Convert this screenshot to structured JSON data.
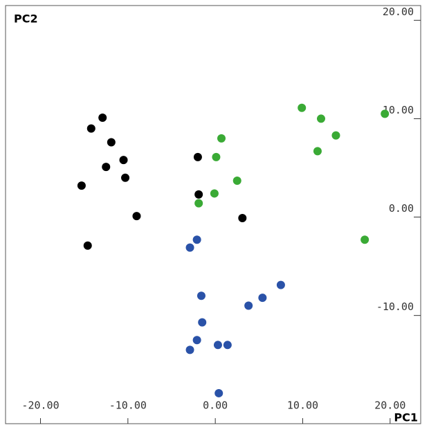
{
  "chart_data": {
    "type": "scatter",
    "x_label": "PC1",
    "y_label": "PC2",
    "xlim": [
      -24,
      23.5
    ],
    "ylim": [
      -21,
      21.5
    ],
    "xticks": [
      {
        "value": -20,
        "label": "-20.00"
      },
      {
        "value": -10,
        "label": "-10.00"
      },
      {
        "value": 0,
        "label": "0.00"
      },
      {
        "value": 10,
        "label": "10.00"
      },
      {
        "value": 20,
        "label": "20.00"
      }
    ],
    "yticks": [
      {
        "value": 20,
        "label": "20.00"
      },
      {
        "value": 10,
        "label": "10.00"
      },
      {
        "value": 0,
        "label": "0.00"
      },
      {
        "value": -10,
        "label": "-10.00"
      }
    ],
    "series": [
      {
        "color": "#000000",
        "x": [
          -12.9,
          -14.2,
          -11.9,
          -12.5,
          -10.5,
          -10.3,
          -15.3,
          -9.0,
          -14.6,
          -2.0,
          -1.9,
          3.1
        ],
        "values": [
          10.1,
          9.0,
          7.6,
          5.1,
          5.8,
          4.0,
          3.2,
          0.1,
          -2.9,
          6.1,
          2.3,
          -0.1
        ]
      },
      {
        "color": "#3aaa35",
        "x": [
          9.9,
          12.1,
          13.8,
          11.7,
          19.4,
          17.1,
          0.7,
          0.1,
          2.5,
          -0.1,
          -1.9
        ],
        "values": [
          11.1,
          10.0,
          8.3,
          6.7,
          10.5,
          -2.3,
          8.0,
          6.1,
          3.7,
          2.4,
          1.4
        ]
      },
      {
        "color": "#2a52a8",
        "x": [
          -2.1,
          -2.9,
          7.5,
          5.4,
          3.8,
          -1.6,
          -1.5,
          -2.1,
          -2.9,
          0.3,
          1.4,
          0.4
        ],
        "values": [
          -2.3,
          -3.1,
          -6.9,
          -8.2,
          -9.0,
          -8.0,
          -10.7,
          -12.5,
          -13.5,
          -13.0,
          -13.0,
          -17.9
        ]
      }
    ]
  }
}
